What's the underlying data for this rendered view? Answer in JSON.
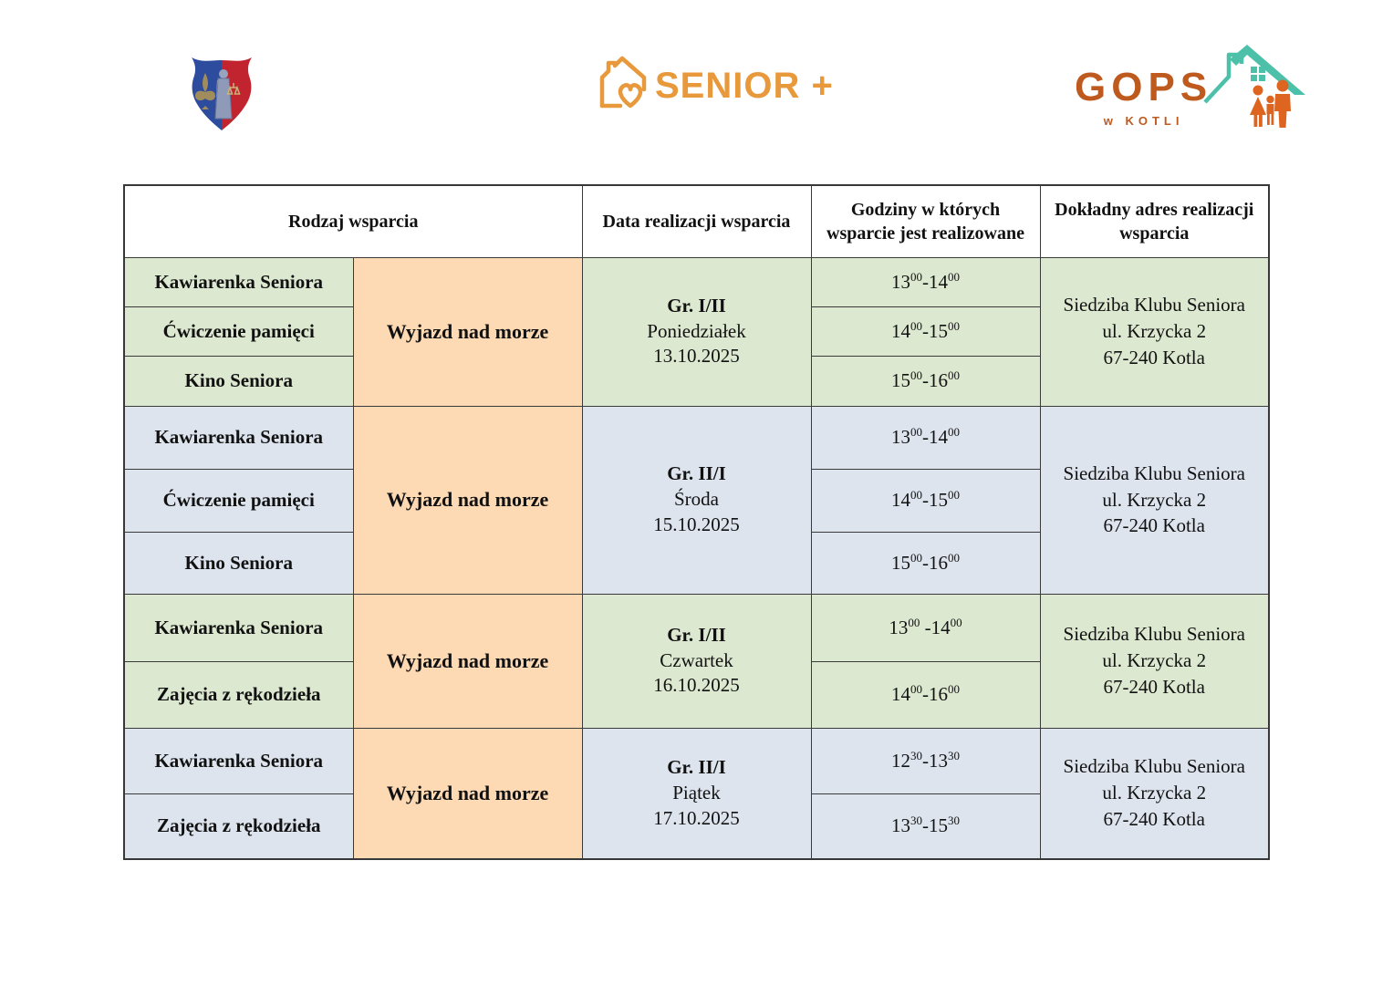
{
  "logos": {
    "crest": {
      "blue": "#2d4c9e",
      "red": "#c2242f",
      "gold": "#ab9157",
      "figure": "#8e9ab8"
    },
    "senior_plus": {
      "text": "SENIOR +",
      "color": "#e8993c"
    },
    "gops": {
      "title": "GOPS",
      "subtitle": "w KOTLI",
      "text_color": "#bf5a1f",
      "roof_color": "#4cc0a8",
      "family_color": "#dd6520"
    }
  },
  "table": {
    "colors": {
      "green": "#dde8d0",
      "blue": "#dde4ee",
      "orange": "#fdd9b4",
      "border": "#3a3a3a"
    },
    "headers": [
      "Rodzaj wsparcia",
      "Data realizacji wsparcia",
      "Godziny w których wsparcie jest realizowane",
      "Dokładny adres realizacji wsparcia"
    ],
    "groups": [
      {
        "theme": "green",
        "activities": [
          "Kawiarenka Seniora",
          "Ćwiczenie pamięci",
          "Kino Seniora"
        ],
        "trip": "Wyjazd nad morze",
        "group_label": "Gr. I/II",
        "day": "Poniedziałek",
        "date": "13.10.2025",
        "times": [
          {
            "start": "13",
            "start_sup": "00",
            "sep": "-",
            "end": "14",
            "end_sup": "00"
          },
          {
            "start": "14",
            "start_sup": "00",
            "sep": "-",
            "end": "15",
            "end_sup": "00"
          },
          {
            "start": "15",
            "start_sup": "00",
            "sep": "-",
            "end": "16",
            "end_sup": "00"
          }
        ],
        "address": [
          "Siedziba Klubu Seniora",
          "ul. Krzycka 2",
          "67-240 Kotla"
        ]
      },
      {
        "theme": "blue",
        "activities": [
          "Kawiarenka Seniora",
          "Ćwiczenie pamięci",
          "Kino Seniora"
        ],
        "trip": "Wyjazd nad morze",
        "group_label": "Gr. II/I",
        "day": "Środa",
        "date": "15.10.2025",
        "times": [
          {
            "start": "13",
            "start_sup": "00",
            "sep": "-",
            "end": "14",
            "end_sup": "00"
          },
          {
            "start": "14",
            "start_sup": "00",
            "sep": "-",
            "end": "15",
            "end_sup": "00"
          },
          {
            "start": "15",
            "start_sup": "00",
            "sep": "-",
            "end": "16",
            "end_sup": "00"
          }
        ],
        "address": [
          "Siedziba Klubu Seniora",
          "ul. Krzycka 2",
          "67-240 Kotla"
        ]
      },
      {
        "theme": "green",
        "activities": [
          "Kawiarenka Seniora",
          "Zajęcia  z rękodzieła"
        ],
        "trip": "Wyjazd nad morze",
        "group_label": "Gr. I/II",
        "day": "Czwartek",
        "date": "16.10.2025",
        "times": [
          {
            "start": "13",
            "start_sup": "00",
            "sep": " -",
            "end": "14",
            "end_sup": "00"
          },
          {
            "start": "14",
            "start_sup": "00",
            "sep": "-",
            "end": "16",
            "end_sup": "00"
          }
        ],
        "address": [
          "Siedziba Klubu Seniora",
          "ul. Krzycka 2",
          "67-240 Kotla"
        ]
      },
      {
        "theme": "blue",
        "activities": [
          "Kawiarenka Seniora",
          "Zajęcia  z rękodzieła"
        ],
        "trip": "Wyjazd nad morze",
        "group_label": "Gr. II/I",
        "day": "Piątek",
        "date": "17.10.2025",
        "times": [
          {
            "start": "12",
            "start_sup": "30",
            "sep": "-",
            "end": "13",
            "end_sup": "30"
          },
          {
            "start": "13",
            "start_sup": "30",
            "sep": "-",
            "end": "15",
            "end_sup": "30"
          }
        ],
        "address": [
          "Siedziba Klubu Seniora",
          "ul. Krzycka 2",
          "67-240 Kotla"
        ]
      }
    ]
  }
}
